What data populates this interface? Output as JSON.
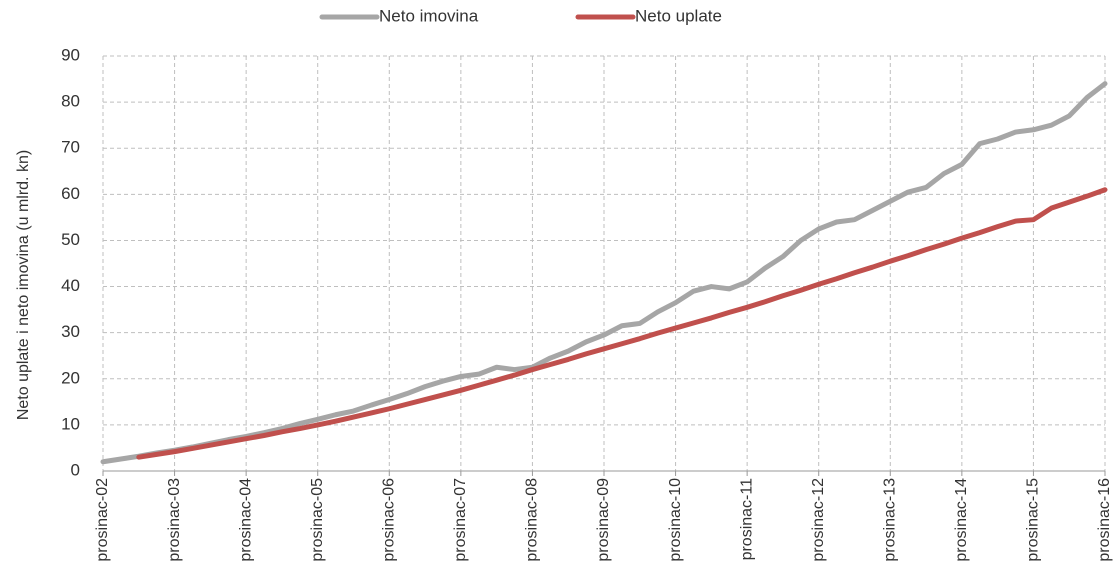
{
  "chart_data": {
    "type": "line",
    "y_label": "Neto uplate i neto imovina (u mlrd. kn)",
    "categories": [
      "prosinac-02",
      null,
      null,
      null,
      "prosinac-03",
      null,
      null,
      null,
      "prosinac-04",
      null,
      null,
      null,
      "prosinac-05",
      null,
      null,
      null,
      "prosinac-06",
      null,
      null,
      null,
      "prosinac-07",
      null,
      null,
      null,
      "prosinac-08",
      null,
      null,
      null,
      "prosinac-09",
      null,
      null,
      null,
      "prosinac-10",
      null,
      null,
      null,
      "prosinac-11",
      null,
      null,
      null,
      "prosinac-12",
      null,
      null,
      null,
      "prosinac-13",
      null,
      null,
      null,
      "prosinac-14",
      null,
      null,
      null,
      "prosinac-15",
      null,
      null,
      null,
      "prosinac-16"
    ],
    "series": [
      {
        "name": "Neto imovina",
        "color": "#a6a6a6",
        "values": [
          2,
          2.6,
          3.2,
          3.9,
          4.5,
          5.2,
          6.0,
          6.8,
          7.5,
          8.3,
          9.2,
          10.3,
          11.2,
          12.2,
          13.0,
          14.3,
          15.5,
          16.8,
          18.3,
          19.5,
          20.5,
          21.0,
          22.5,
          22.0,
          22.5,
          24.5,
          26.0,
          28.0,
          29.5,
          31.5,
          32.0,
          34.5,
          36.5,
          39.0,
          40.0,
          39.5,
          41.0,
          44.0,
          46.5,
          50.0,
          52.5,
          54.0,
          54.5,
          56.5,
          58.5,
          60.5,
          61.5,
          64.5,
          66.5,
          71.0,
          72.0,
          73.5,
          74.0,
          75.0,
          77.0,
          81.0,
          84.0
        ]
      },
      {
        "name": "Neto uplate",
        "color": "#c0504d",
        "values": [
          null,
          null,
          3.0,
          3.6,
          4.2,
          4.9,
          5.6,
          6.3,
          7.0,
          7.7,
          8.5,
          9.2,
          10.0,
          10.8,
          11.7,
          12.6,
          13.5,
          14.5,
          15.5,
          16.5,
          17.5,
          18.6,
          19.7,
          20.8,
          22.0,
          23.1,
          24.2,
          25.4,
          26.5,
          27.6,
          28.7,
          29.9,
          31.0,
          32.1,
          33.2,
          34.4,
          35.5,
          36.7,
          38.0,
          39.2,
          40.5,
          41.7,
          43.0,
          44.2,
          45.5,
          46.7,
          48.0,
          49.2,
          50.5,
          51.7,
          53.0,
          54.2,
          54.5,
          57.0,
          58.3,
          59.6,
          61.0
        ]
      }
    ],
    "ylim": [
      0,
      90
    ],
    "yticks": [
      0,
      10,
      20,
      30,
      40,
      50,
      60,
      70,
      80,
      90
    ],
    "grid": true,
    "legend": "top"
  }
}
